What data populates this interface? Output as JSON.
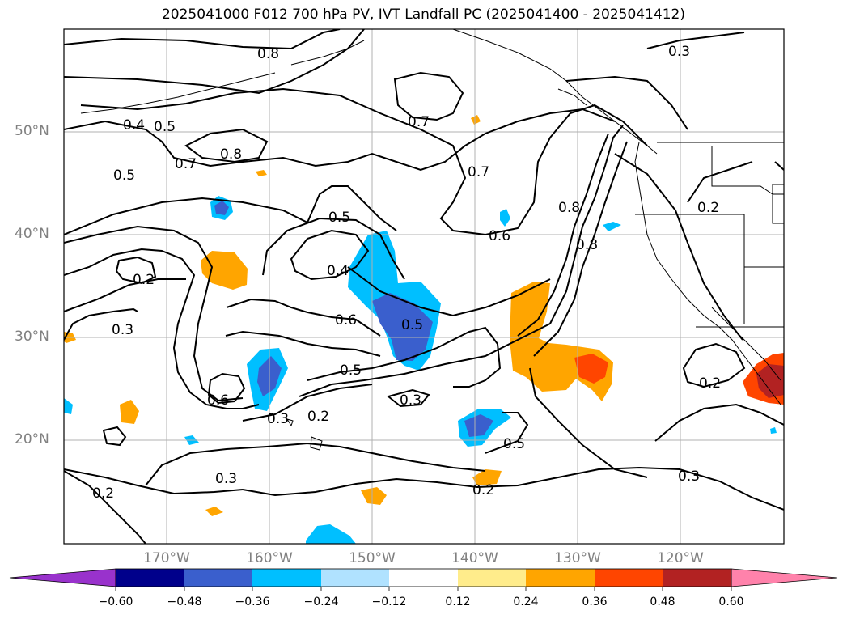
{
  "title": "2025041000 F012 700 hPa PV, IVT Landfall PC (2025041400 - 2025041412)",
  "lat_labels": [
    "50°N",
    "40°N",
    "30°N",
    "20°N"
  ],
  "lon_labels": [
    "170°W",
    "160°W",
    "150°W",
    "140°W",
    "130°W",
    "120°W"
  ],
  "contour_labels": [
    "0.8",
    "0.3",
    "0.4",
    "0.5",
    "0.7",
    "0.8",
    "0.5",
    "0.7",
    "0.7",
    "0.5",
    "0.6",
    "0.8",
    "0.2",
    "0.4",
    "0.2",
    "0.3",
    "0.6",
    "0.5",
    "0.6",
    "0.5",
    "0.3",
    "0.3",
    "0.2",
    "0.5",
    "0.2",
    "0.2",
    "0.3",
    "0.3",
    "0.2",
    "0.8"
  ],
  "colorbar": {
    "ticks": [
      "−0.60",
      "−0.48",
      "−0.36",
      "−0.24",
      "−0.12",
      "0.12",
      "0.24",
      "0.36",
      "0.48",
      "0.60"
    ],
    "colors": [
      "#9932cc",
      "#00008b",
      "#3a5fcd",
      "#00bfff",
      "#b0e2ff",
      "#ffffff",
      "#ffec8b",
      "#ffa500",
      "#ff4500",
      "#b22222",
      "#ff82ab"
    ]
  }
}
